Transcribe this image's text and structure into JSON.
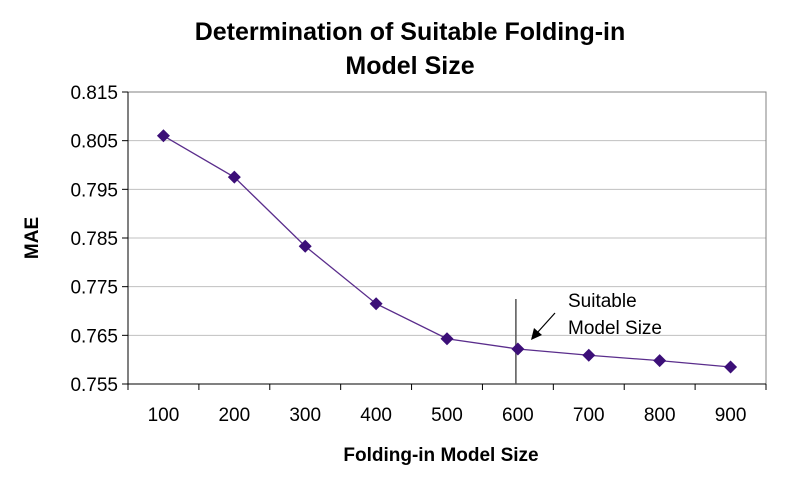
{
  "chart_data": {
    "type": "line",
    "title_line1": "Determination of Suitable Folding-in",
    "title_line2": "Model Size",
    "xlabel": "Folding-in Model Size",
    "ylabel": "MAE",
    "categories": [
      "100",
      "200",
      "300",
      "400",
      "500",
      "600",
      "700",
      "800",
      "900"
    ],
    "series": [
      {
        "values": [
          0.806,
          0.7975,
          0.7833,
          0.7715,
          0.7643,
          0.7622,
          0.7609,
          0.7598,
          0.7585
        ]
      }
    ],
    "ylim": [
      0.755,
      0.815
    ],
    "yticks": [
      "0.815",
      "0.805",
      "0.795",
      "0.785",
      "0.775",
      "0.765",
      "0.755"
    ],
    "grid": true,
    "line_color": "#5a2d8c",
    "marker_color": "#3c0f78",
    "annotation": {
      "line1": "Suitable",
      "line2": "Model Size",
      "x_value": "600"
    }
  }
}
